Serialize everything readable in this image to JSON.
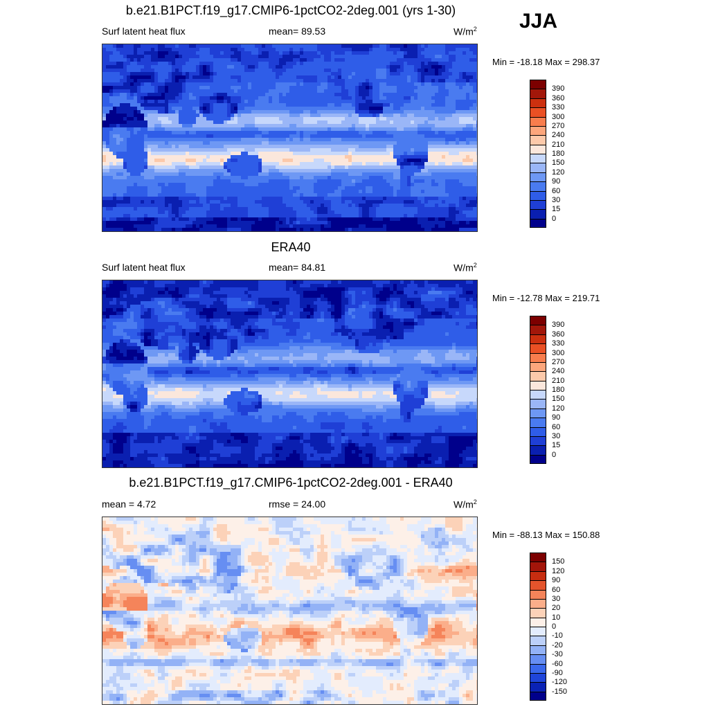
{
  "season": "JJA",
  "panels": [
    {
      "title": "b.e21.B1PCT.f19_g17.CMIP6-1pctCO2-2deg.001 (yrs 1-30)",
      "left_label": "Surf latent heat flux",
      "stat_label": "mean=  89.53",
      "units": "W/m",
      "units_sup": "2",
      "minmax": "Min = -18.18 Max = 298.37"
    },
    {
      "title": "ERA40",
      "left_label": "Surf latent heat flux",
      "stat_label": "mean=  84.81",
      "units": "W/m",
      "units_sup": "2",
      "minmax": "Min = -12.78 Max = 219.71"
    },
    {
      "title": "b.e21.B1PCT.f19_g17.CMIP6-1pctCO2-2deg.001 - ERA40",
      "left_label": "mean =   4.72",
      "stat_label": "rmse =  24.00",
      "units": "W/m",
      "units_sup": "2",
      "minmax": "Min = -88.13 Max = 150.88"
    }
  ],
  "chart_data": [
    {
      "type": "heatmap",
      "title": "b.e21.B1PCT.f19_g17.CMIP6-1pctCO2-2deg.001 (yrs 1-30)",
      "variable": "Surf latent heat flux",
      "units": "W/m2",
      "mean": 89.53,
      "min": -18.18,
      "max": 298.37,
      "colorbar": {
        "levels": [
          0,
          15,
          30,
          60,
          90,
          120,
          150,
          180,
          210,
          240,
          270,
          300,
          330,
          360,
          390
        ],
        "level_labels": [
          "0",
          "15",
          "30",
          "60",
          "90",
          "120",
          "150",
          "180",
          "210",
          "240",
          "270",
          "300",
          "330",
          "360",
          "390"
        ],
        "colors": [
          "#00008b",
          "#0a1fb0",
          "#1f3fd6",
          "#2f5de8",
          "#4a7bf0",
          "#6e98f4",
          "#9ab6f7",
          "#c7d8fb",
          "#fbe7dc",
          "#fcc9aa",
          "#fca67c",
          "#f87d4d",
          "#ea5024",
          "#cc300f",
          "#a2170a",
          "#7c0000"
        ]
      }
    },
    {
      "type": "heatmap",
      "title": "ERA40",
      "variable": "Surf latent heat flux",
      "units": "W/m2",
      "mean": 84.81,
      "min": -12.78,
      "max": 219.71,
      "colorbar": {
        "levels": [
          0,
          15,
          30,
          60,
          90,
          120,
          150,
          180,
          210,
          240,
          270,
          300,
          330,
          360,
          390
        ],
        "level_labels": [
          "0",
          "15",
          "30",
          "60",
          "90",
          "120",
          "150",
          "180",
          "210",
          "240",
          "270",
          "300",
          "330",
          "360",
          "390"
        ],
        "colors": [
          "#00008b",
          "#0a1fb0",
          "#1f3fd6",
          "#2f5de8",
          "#4a7bf0",
          "#6e98f4",
          "#9ab6f7",
          "#c7d8fb",
          "#fbe7dc",
          "#fcc9aa",
          "#fca67c",
          "#f87d4d",
          "#ea5024",
          "#cc300f",
          "#a2170a",
          "#7c0000"
        ]
      }
    },
    {
      "type": "heatmap",
      "title": "b.e21.B1PCT.f19_g17.CMIP6-1pctCO2-2deg.001 - ERA40",
      "units": "W/m2",
      "mean": 4.72,
      "rmse": 24.0,
      "min": -88.13,
      "max": 150.88,
      "colorbar": {
        "levels": [
          -150,
          -120,
          -90,
          -60,
          -30,
          -20,
          -10,
          0,
          10,
          20,
          30,
          60,
          90,
          120,
          150
        ],
        "level_labels": [
          "-150",
          "-120",
          "-90",
          "-60",
          "-30",
          "-20",
          "-10",
          "0",
          "10",
          "20",
          "30",
          "60",
          "90",
          "120",
          "150"
        ],
        "colors": [
          "#00008b",
          "#0a22b5",
          "#1f45da",
          "#3a68ec",
          "#668ef2",
          "#93b2f6",
          "#bcd0f9",
          "#e3ecfd",
          "#fdf0e8",
          "#fcd2b8",
          "#fbae8a",
          "#f5845a",
          "#e4542c",
          "#c72d10",
          "#a3150a",
          "#7c0000"
        ]
      }
    }
  ]
}
